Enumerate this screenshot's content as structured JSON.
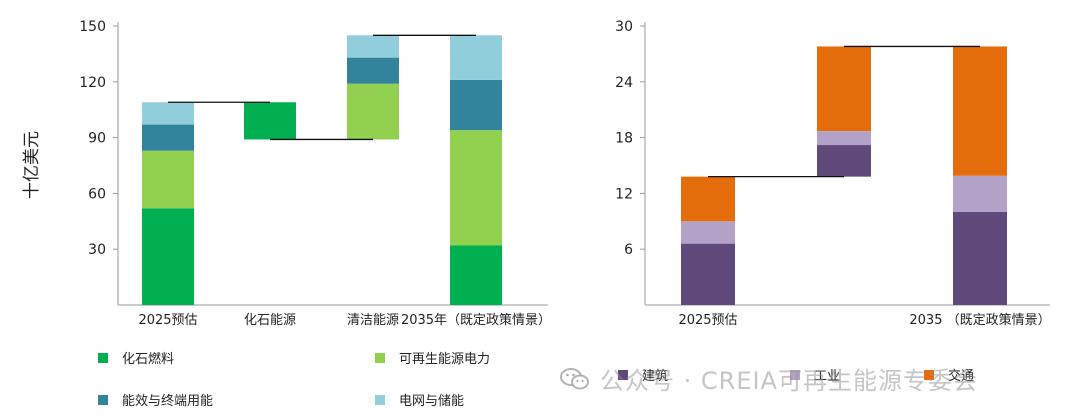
{
  "chart_data": [
    {
      "type": "waterfall",
      "ylabel": "十亿美元",
      "ylim": [
        0,
        150
      ],
      "yticks": [
        30,
        60,
        90,
        120,
        150
      ],
      "categories": [
        "2025预估",
        "化石能源",
        "清洁能源",
        "2035年（既定政策情景）"
      ],
      "series_names": [
        "化石燃料",
        "可再生能源电力",
        "能效与终端用能",
        "电网与储能"
      ],
      "colors": [
        "#00b050",
        "#92d050",
        "#31849b",
        "#92cddc"
      ],
      "bars": [
        {
          "category": "2025预估",
          "segments": [
            {
              "series": "化石燃料",
              "from": 0,
              "to": 52
            },
            {
              "series": "可再生能源电力",
              "from": 52,
              "to": 83
            },
            {
              "series": "能效与终端用能",
              "from": 83,
              "to": 97
            },
            {
              "series": "电网与储能",
              "from": 97,
              "to": 109
            }
          ]
        },
        {
          "category": "化石能源",
          "segments": [
            {
              "series": "化石燃料",
              "from": 89,
              "to": 109
            }
          ]
        },
        {
          "category": "清洁能源",
          "segments": [
            {
              "series": "可再生能源电力",
              "from": 89,
              "to": 119
            },
            {
              "series": "能效与终端用能",
              "from": 119,
              "to": 133
            },
            {
              "series": "电网与储能",
              "from": 133,
              "to": 145
            }
          ]
        },
        {
          "category": "2035年（既定政策情景）",
          "segments": [
            {
              "series": "化石燃料",
              "from": 0,
              "to": 32
            },
            {
              "series": "可再生能源电力",
              "from": 32,
              "to": 94
            },
            {
              "series": "能效与终端用能",
              "from": 94,
              "to": 121
            },
            {
              "series": "电网与储能",
              "from": 121,
              "to": 145
            }
          ]
        }
      ],
      "connectors": [
        {
          "from_bar": 0,
          "to_bar": 1,
          "y": 109
        },
        {
          "from_bar": 1,
          "to_bar": 2,
          "y": 89
        },
        {
          "from_bar": 2,
          "to_bar": 3,
          "y": 145
        }
      ],
      "grid": false
    },
    {
      "type": "waterfall",
      "ylim": [
        0,
        30
      ],
      "yticks": [
        6,
        12,
        18,
        24,
        30
      ],
      "categories": [
        "2025预估",
        "",
        "2035 （既定政策情景）"
      ],
      "series_names": [
        "建筑",
        "工业",
        "交通"
      ],
      "colors": [
        "#604a7b",
        "#b3a2c7",
        "#e46c0a"
      ],
      "bars": [
        {
          "category": "2025预估",
          "segments": [
            {
              "series": "建筑",
              "from": 0,
              "to": 6.6
            },
            {
              "series": "工业",
              "from": 6.6,
              "to": 9
            },
            {
              "series": "交通",
              "from": 9,
              "to": 13.8
            }
          ]
        },
        {
          "category": "",
          "segments": [
            {
              "series": "建筑",
              "from": 13.8,
              "to": 17.2
            },
            {
              "series": "工业",
              "from": 17.2,
              "to": 18.7
            },
            {
              "series": "交通",
              "from": 18.7,
              "to": 27.8
            }
          ]
        },
        {
          "category": "2035 （既定政策情景）",
          "segments": [
            {
              "series": "建筑",
              "from": 0,
              "to": 10
            },
            {
              "series": "工业",
              "from": 10,
              "to": 13.9
            },
            {
              "series": "交通",
              "from": 13.9,
              "to": 27.8
            }
          ]
        }
      ],
      "connectors": [
        {
          "from_bar": 0,
          "to_bar": 1,
          "y": 13.8
        },
        {
          "from_bar": 1,
          "to_bar": 2,
          "y": 27.8
        }
      ],
      "grid": false
    }
  ],
  "legend_left": [
    {
      "label": "化石燃料",
      "color": "#00b050"
    },
    {
      "label": "可再生能源电力",
      "color": "#92d050"
    },
    {
      "label": "能效与终端用能",
      "color": "#31849b"
    },
    {
      "label": "电网与储能",
      "color": "#92cddc"
    }
  ],
  "legend_right": [
    {
      "label": "建筑",
      "color": "#604a7b"
    },
    {
      "label": "工业",
      "color": "#b3a2c7"
    },
    {
      "label": "交通",
      "color": "#e46c0a"
    }
  ],
  "watermark": {
    "text": "公众号 · CREIA可再生能源专委会",
    "icon": "wechat-icon"
  }
}
